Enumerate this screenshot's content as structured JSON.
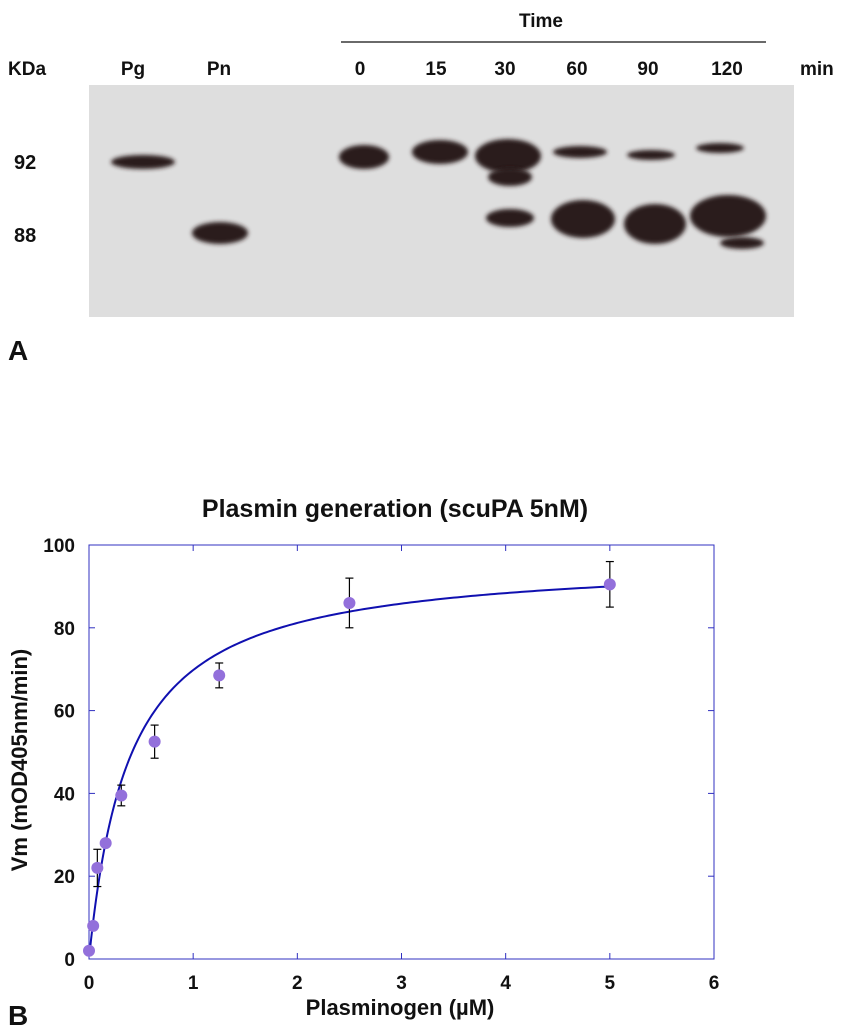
{
  "panel_a": {
    "label": "A",
    "unit_left": "KDa",
    "unit_right": "min",
    "time_label": "Time",
    "lanes": [
      "Pg",
      "Pn",
      "0",
      "15",
      "30",
      "60",
      "90",
      "120"
    ],
    "mw_markers": [
      "92",
      "88"
    ],
    "colors": {
      "blot_bg": "#dcdcdc",
      "band": "#2a1c1c"
    }
  },
  "panel_b": {
    "label": "B"
  },
  "chart_data": {
    "type": "scatter",
    "title": "Plasmin generation (scuPA 5nM)",
    "xlabel": "Plasminogen (µM)",
    "ylabel": "Vm (mOD405nm/min)",
    "xlim": [
      0,
      6
    ],
    "ylim": [
      0,
      100
    ],
    "x_ticks": [
      0,
      1,
      2,
      3,
      4,
      5,
      6
    ],
    "y_ticks": [
      0,
      20,
      40,
      60,
      80,
      100
    ],
    "grid": false,
    "series": [
      {
        "points": [
          {
            "x": 0,
            "y": 2,
            "err": 0
          },
          {
            "x": 0.04,
            "y": 8,
            "err": 0
          },
          {
            "x": 0.08,
            "y": 22,
            "err": 4.5
          },
          {
            "x": 0.16,
            "y": 28,
            "err": 0
          },
          {
            "x": 0.31,
            "y": 39.5,
            "err": 2.5
          },
          {
            "x": 0.63,
            "y": 52.5,
            "err": 4
          },
          {
            "x": 1.25,
            "y": 68.5,
            "err": 3
          },
          {
            "x": 2.5,
            "y": 86,
            "err": 6
          },
          {
            "x": 5,
            "y": 90.5,
            "err": 5.5
          }
        ],
        "fit": {
          "model": "Vmax*x/(Km+x)",
          "Vmax": 97,
          "Km": 0.39
        }
      }
    ],
    "colors": {
      "points": "#9370db",
      "fit": "#1010b0",
      "frame": "#3030c0",
      "errorbars": "#000000"
    }
  }
}
